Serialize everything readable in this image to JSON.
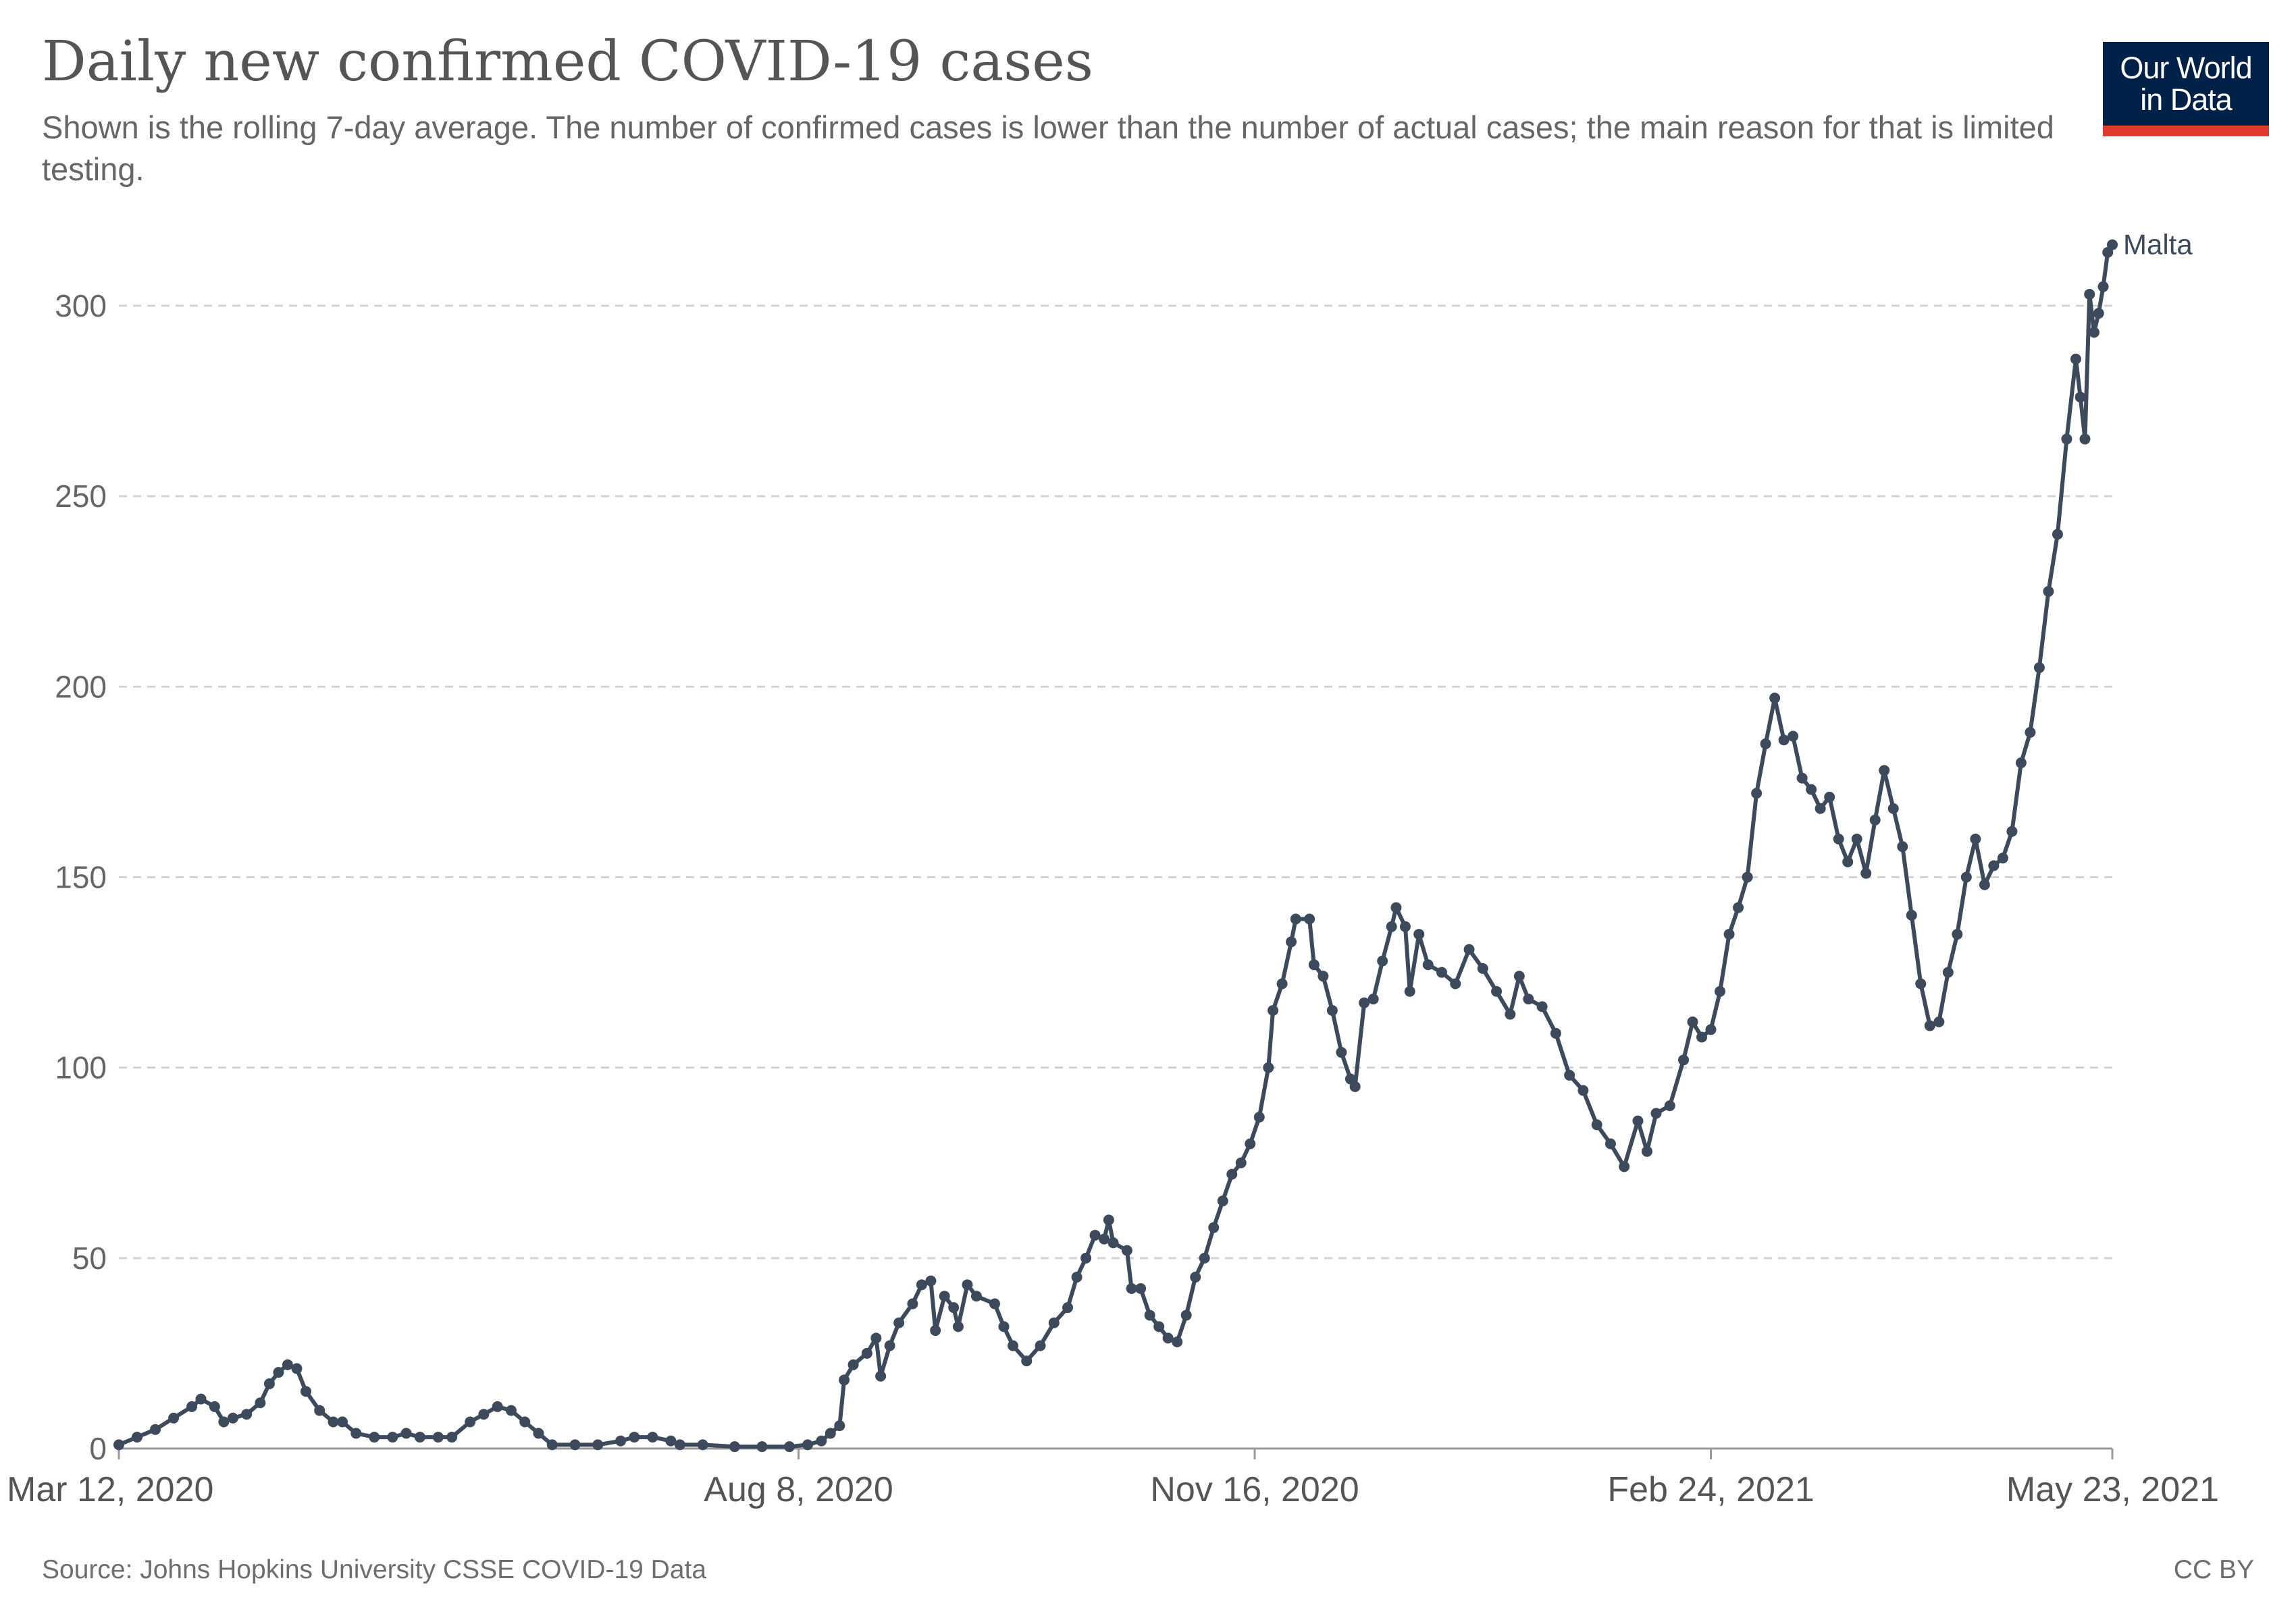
{
  "header": {
    "title": "Daily new confirmed COVID-19 cases",
    "subtitle": "Shown is the rolling 7-day average. The number of confirmed cases is lower than the number of actual cases; the main reason for that is limited testing."
  },
  "logo": {
    "line1": "Our World",
    "line2": "in Data",
    "bg_color": "#002147",
    "accent_color": "#e03a2f"
  },
  "footer": {
    "source": "Source: Johns Hopkins University CSSE COVID-19 Data",
    "license": "CC BY"
  },
  "chart_data": {
    "type": "line",
    "title": "Daily new confirmed COVID-19 cases",
    "xlabel": "",
    "ylabel": "",
    "x_start": "2020-03-12",
    "x_end": "2021-05-23",
    "x_ticks": [
      "Mar 12, 2020",
      "Aug 8, 2020",
      "Nov 16, 2020",
      "Feb 24, 2021",
      "May 23, 2021"
    ],
    "x_tick_dates": [
      "2020-03-12",
      "2020-08-08",
      "2020-11-16",
      "2021-02-24",
      "2021-05-23"
    ],
    "y_ticks": [
      0,
      50,
      100,
      150,
      200,
      250,
      300
    ],
    "ylim": [
      0,
      320
    ],
    "grid": "horizontal dashed",
    "line_color": "#3c4a5c",
    "markers": true,
    "series": [
      {
        "name": "Malta",
        "points": [
          [
            "2020-03-12",
            1
          ],
          [
            "2020-03-16",
            3
          ],
          [
            "2020-03-20",
            5
          ],
          [
            "2020-03-24",
            8
          ],
          [
            "2020-03-28",
            11
          ],
          [
            "2020-03-30",
            13
          ],
          [
            "2020-04-02",
            11
          ],
          [
            "2020-04-04",
            7
          ],
          [
            "2020-04-06",
            8
          ],
          [
            "2020-04-09",
            9
          ],
          [
            "2020-04-12",
            12
          ],
          [
            "2020-04-14",
            17
          ],
          [
            "2020-04-16",
            20
          ],
          [
            "2020-04-18",
            22
          ],
          [
            "2020-04-20",
            21
          ],
          [
            "2020-04-22",
            15
          ],
          [
            "2020-04-25",
            10
          ],
          [
            "2020-04-28",
            7
          ],
          [
            "2020-04-30",
            7
          ],
          [
            "2020-05-03",
            4
          ],
          [
            "2020-05-07",
            3
          ],
          [
            "2020-05-11",
            3
          ],
          [
            "2020-05-14",
            4
          ],
          [
            "2020-05-17",
            3
          ],
          [
            "2020-05-21",
            3
          ],
          [
            "2020-05-24",
            3
          ],
          [
            "2020-05-28",
            7
          ],
          [
            "2020-05-31",
            9
          ],
          [
            "2020-06-03",
            11
          ],
          [
            "2020-06-06",
            10
          ],
          [
            "2020-06-09",
            7
          ],
          [
            "2020-06-12",
            4
          ],
          [
            "2020-06-15",
            1
          ],
          [
            "2020-06-20",
            1
          ],
          [
            "2020-06-25",
            1
          ],
          [
            "2020-06-30",
            2
          ],
          [
            "2020-07-03",
            3
          ],
          [
            "2020-07-07",
            3
          ],
          [
            "2020-07-11",
            2
          ],
          [
            "2020-07-13",
            1
          ],
          [
            "2020-07-18",
            1
          ],
          [
            "2020-07-25",
            0.5
          ],
          [
            "2020-07-31",
            0.5
          ],
          [
            "2020-08-06",
            0.5
          ],
          [
            "2020-08-10",
            1
          ],
          [
            "2020-08-13",
            2
          ],
          [
            "2020-08-15",
            4
          ],
          [
            "2020-08-17",
            6
          ],
          [
            "2020-08-18",
            18
          ],
          [
            "2020-08-20",
            22
          ],
          [
            "2020-08-23",
            25
          ],
          [
            "2020-08-25",
            29
          ],
          [
            "2020-08-26",
            19
          ],
          [
            "2020-08-28",
            27
          ],
          [
            "2020-08-30",
            33
          ],
          [
            "2020-09-02",
            38
          ],
          [
            "2020-09-04",
            43
          ],
          [
            "2020-09-06",
            44
          ],
          [
            "2020-09-07",
            31
          ],
          [
            "2020-09-09",
            40
          ],
          [
            "2020-09-11",
            37
          ],
          [
            "2020-09-12",
            32
          ],
          [
            "2020-09-14",
            43
          ],
          [
            "2020-09-16",
            40
          ],
          [
            "2020-09-20",
            38
          ],
          [
            "2020-09-22",
            32
          ],
          [
            "2020-09-24",
            27
          ],
          [
            "2020-09-27",
            23
          ],
          [
            "2020-09-30",
            27
          ],
          [
            "2020-10-03",
            33
          ],
          [
            "2020-10-06",
            37
          ],
          [
            "2020-10-08",
            45
          ],
          [
            "2020-10-10",
            50
          ],
          [
            "2020-10-12",
            56
          ],
          [
            "2020-10-14",
            55
          ],
          [
            "2020-10-15",
            60
          ],
          [
            "2020-10-16",
            54
          ],
          [
            "2020-10-19",
            52
          ],
          [
            "2020-10-20",
            42
          ],
          [
            "2020-10-22",
            42
          ],
          [
            "2020-10-24",
            35
          ],
          [
            "2020-10-26",
            32
          ],
          [
            "2020-10-28",
            29
          ],
          [
            "2020-10-30",
            28
          ],
          [
            "2020-11-01",
            35
          ],
          [
            "2020-11-03",
            45
          ],
          [
            "2020-11-05",
            50
          ],
          [
            "2020-11-07",
            58
          ],
          [
            "2020-11-09",
            65
          ],
          [
            "2020-11-11",
            72
          ],
          [
            "2020-11-13",
            75
          ],
          [
            "2020-11-15",
            80
          ],
          [
            "2020-11-17",
            87
          ],
          [
            "2020-11-19",
            100
          ],
          [
            "2020-11-20",
            115
          ],
          [
            "2020-11-22",
            122
          ],
          [
            "2020-11-24",
            133
          ],
          [
            "2020-11-25",
            139
          ],
          [
            "2020-11-28",
            139
          ],
          [
            "2020-11-29",
            127
          ],
          [
            "2020-12-01",
            124
          ],
          [
            "2020-12-03",
            115
          ],
          [
            "2020-12-05",
            104
          ],
          [
            "2020-12-07",
            97
          ],
          [
            "2020-12-08",
            95
          ],
          [
            "2020-12-10",
            117
          ],
          [
            "2020-12-12",
            118
          ],
          [
            "2020-12-14",
            128
          ],
          [
            "2020-12-16",
            137
          ],
          [
            "2020-12-17",
            142
          ],
          [
            "2020-12-19",
            137
          ],
          [
            "2020-12-20",
            120
          ],
          [
            "2020-12-22",
            135
          ],
          [
            "2020-12-24",
            127
          ],
          [
            "2020-12-27",
            125
          ],
          [
            "2020-12-30",
            122
          ],
          [
            "2021-01-02",
            131
          ],
          [
            "2021-01-05",
            126
          ],
          [
            "2021-01-08",
            120
          ],
          [
            "2021-01-11",
            114
          ],
          [
            "2021-01-13",
            124
          ],
          [
            "2021-01-15",
            118
          ],
          [
            "2021-01-18",
            116
          ],
          [
            "2021-01-21",
            109
          ],
          [
            "2021-01-24",
            98
          ],
          [
            "2021-01-27",
            94
          ],
          [
            "2021-01-30",
            85
          ],
          [
            "2021-02-02",
            80
          ],
          [
            "2021-02-05",
            74
          ],
          [
            "2021-02-08",
            86
          ],
          [
            "2021-02-10",
            78
          ],
          [
            "2021-02-12",
            88
          ],
          [
            "2021-02-15",
            90
          ],
          [
            "2021-02-18",
            102
          ],
          [
            "2021-02-20",
            112
          ],
          [
            "2021-02-22",
            108
          ],
          [
            "2021-02-24",
            110
          ],
          [
            "2021-02-26",
            120
          ],
          [
            "2021-02-28",
            135
          ],
          [
            "2021-03-02",
            142
          ],
          [
            "2021-03-04",
            150
          ],
          [
            "2021-03-06",
            172
          ],
          [
            "2021-03-08",
            185
          ],
          [
            "2021-03-10",
            197
          ],
          [
            "2021-03-12",
            186
          ],
          [
            "2021-03-14",
            187
          ],
          [
            "2021-03-16",
            176
          ],
          [
            "2021-03-18",
            173
          ],
          [
            "2021-03-20",
            168
          ],
          [
            "2021-03-22",
            171
          ],
          [
            "2021-03-24",
            160
          ],
          [
            "2021-03-26",
            154
          ],
          [
            "2021-03-28",
            160
          ],
          [
            "2021-03-30",
            151
          ],
          [
            "2021-04-01",
            165
          ],
          [
            "2021-04-03",
            178
          ],
          [
            "2021-04-05",
            168
          ],
          [
            "2021-04-07",
            158
          ],
          [
            "2021-04-09",
            140
          ],
          [
            "2021-04-11",
            122
          ],
          [
            "2021-04-13",
            111
          ],
          [
            "2021-04-15",
            112
          ],
          [
            "2021-04-17",
            125
          ],
          [
            "2021-04-19",
            135
          ],
          [
            "2021-04-21",
            150
          ],
          [
            "2021-04-23",
            160
          ],
          [
            "2021-04-25",
            148
          ],
          [
            "2021-04-27",
            153
          ],
          [
            "2021-04-29",
            155
          ],
          [
            "2021-05-01",
            162
          ],
          [
            "2021-05-03",
            180
          ],
          [
            "2021-05-05",
            188
          ],
          [
            "2021-05-07",
            205
          ],
          [
            "2021-05-09",
            225
          ],
          [
            "2021-05-11",
            240
          ],
          [
            "2021-05-13",
            265
          ],
          [
            "2021-05-15",
            286
          ],
          [
            "2021-05-16",
            276
          ],
          [
            "2021-05-17",
            265
          ],
          [
            "2021-05-18",
            303
          ],
          [
            "2021-05-19",
            293
          ],
          [
            "2021-05-20",
            298
          ],
          [
            "2021-05-21",
            305
          ],
          [
            "2021-05-22",
            314
          ],
          [
            "2021-05-23",
            316
          ]
        ]
      }
    ]
  }
}
